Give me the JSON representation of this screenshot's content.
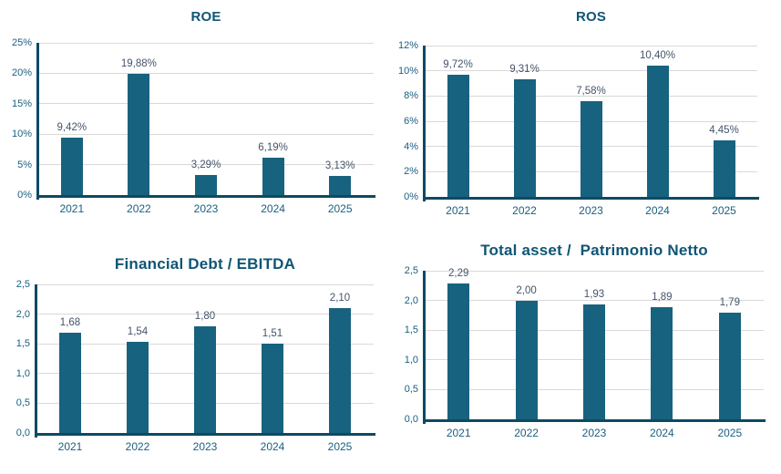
{
  "page": {
    "background": "#FFFFFF"
  },
  "colors": {
    "bar": "#17627F",
    "axis_line": "#0D4A63",
    "gridline": "#D9D9D9",
    "title": "#0F5575",
    "tick_label": "#1A5F80",
    "data_label": "#44546A"
  },
  "chart_data": [
    {
      "type": "bar",
      "title": "ROE",
      "categories": [
        "2021",
        "2022",
        "2023",
        "2024",
        "2025"
      ],
      "values": [
        9.42,
        19.88,
        3.29,
        6.19,
        3.13
      ],
      "value_labels": [
        "9,42%",
        "19,88%",
        "3,29%",
        "6,19%",
        "3,13%"
      ],
      "xlabel": "",
      "ylabel": "",
      "ylim": [
        0,
        25
      ],
      "ytick_values": [
        0,
        5,
        10,
        15,
        20,
        25
      ],
      "ytick_labels": [
        "0%",
        "5%",
        "10%",
        "15%",
        "20%",
        "25%"
      ],
      "grid": "horizontal",
      "legend": "none"
    },
    {
      "type": "bar",
      "title": "ROS",
      "categories": [
        "2021",
        "2022",
        "2023",
        "2024",
        "2025"
      ],
      "values": [
        9.72,
        9.31,
        7.58,
        10.4,
        4.45
      ],
      "value_labels": [
        "9,72%",
        "9,31%",
        "7,58%",
        "10,40%",
        "4,45%"
      ],
      "xlabel": "",
      "ylabel": "",
      "ylim": [
        0,
        12
      ],
      "ytick_values": [
        0,
        2,
        4,
        6,
        8,
        10,
        12
      ],
      "ytick_labels": [
        "0%",
        "2%",
        "4%",
        "6%",
        "8%",
        "10%",
        "12%"
      ],
      "grid": "horizontal",
      "legend": "none"
    },
    {
      "type": "bar",
      "title": "Financial Debt / EBITDA",
      "categories": [
        "2021",
        "2022",
        "2023",
        "2024",
        "2025"
      ],
      "values": [
        1.68,
        1.54,
        1.8,
        1.51,
        2.1
      ],
      "value_labels": [
        "1,68",
        "1,54",
        "1,80",
        "1,51",
        "2,10"
      ],
      "xlabel": "",
      "ylabel": "",
      "ylim": [
        0,
        2.5
      ],
      "ytick_values": [
        0,
        0.5,
        1.0,
        1.5,
        2.0,
        2.5
      ],
      "ytick_labels": [
        "0,0",
        "0,5",
        "1,0",
        "1,5",
        "2,0",
        "2,5"
      ],
      "grid": "horizontal",
      "legend": "none"
    },
    {
      "type": "bar",
      "title": "Total asset /  Patrimonio Netto",
      "categories": [
        "2021",
        "2022",
        "2023",
        "2024",
        "2025"
      ],
      "values": [
        2.29,
        2.0,
        1.93,
        1.89,
        1.79
      ],
      "value_labels": [
        "2,29",
        "2,00",
        "1,93",
        "1,89",
        "1,79"
      ],
      "xlabel": "",
      "ylabel": "",
      "ylim": [
        0,
        2.5
      ],
      "ytick_values": [
        0,
        0.5,
        1.0,
        1.5,
        2.0,
        2.5
      ],
      "ytick_labels": [
        "0,0",
        "0,5",
        "1,0",
        "1,5",
        "2,0",
        "2,5"
      ],
      "grid": "horizontal",
      "legend": "none"
    }
  ]
}
